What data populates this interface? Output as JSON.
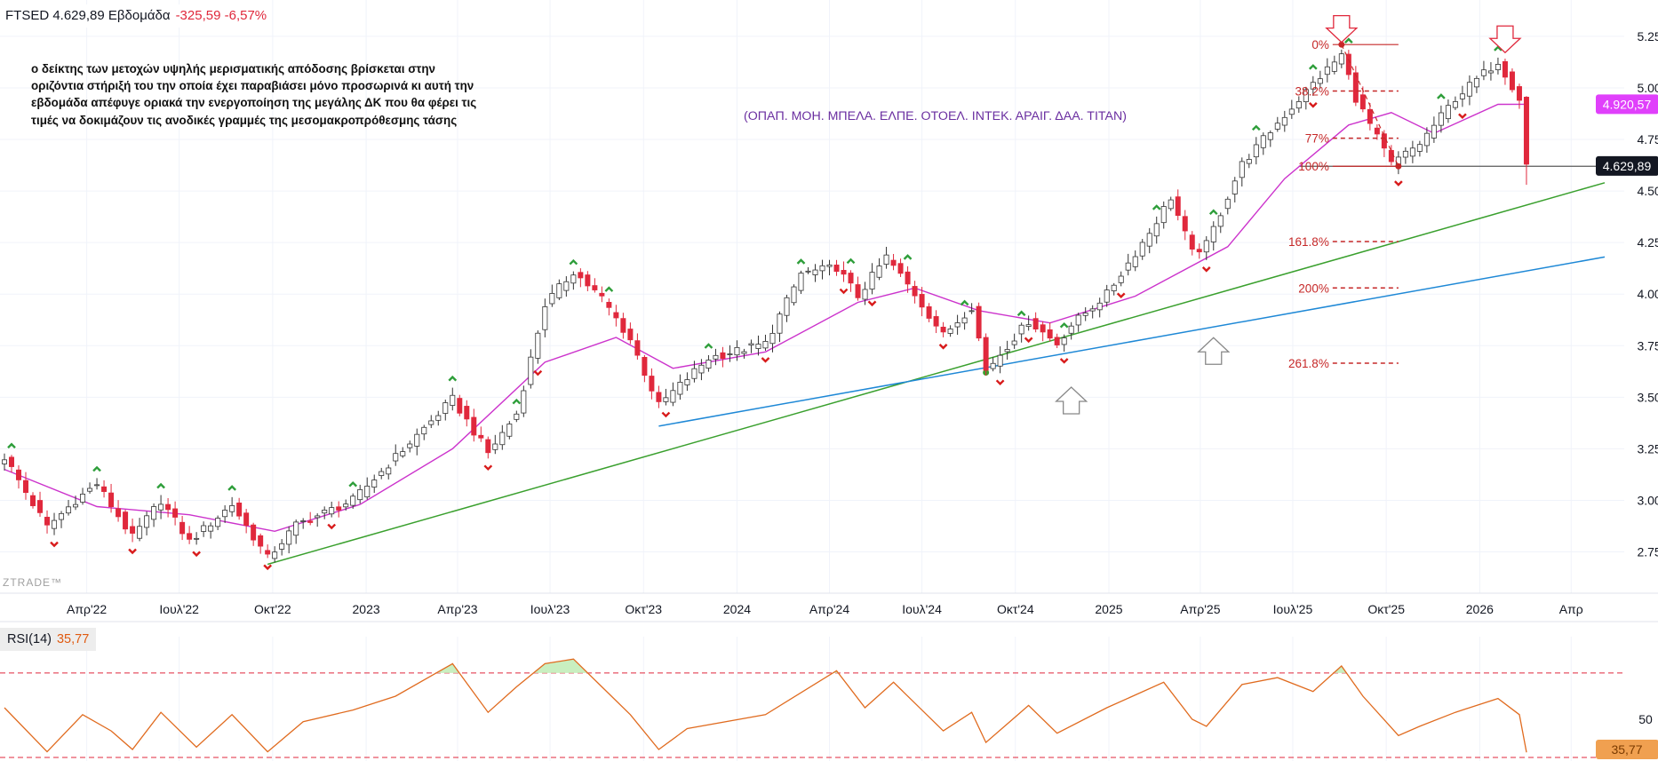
{
  "header": {
    "symbol_line": "FTSED 4.629,89 Εβδομάδα",
    "change": "-325,59 -6,57%"
  },
  "annotations": {
    "note_lines": [
      "ο δείκτης των μετοχών υψηλής μερισματικής απόδοσης βρίσκεται στην",
      "οριζόντια στήριξή του την οποία έχει παραβιάσει μόνο προσωρινά κι αυτή την",
      "εβδομάδα απέφυγε οριακά την ενεργοποίηση της μεγάλης ΔΚ που θα φέρει τις",
      "τιμές να δοκιμάζουν τις ανοδικές γραμμές της μεσομακροπρόθεσμης τάσης"
    ],
    "stocks": "(ΟΠΑΠ. ΜΟΗ. ΜΠΕΛΑ. ΕΛΠΕ.  ΟΤΟΕΛ. ΙΝΤΕΚ. ΑΡΑΙΓ. ΔΑΑ. ΤΙΤΑΝ)",
    "watermark": "ZTRADE™"
  },
  "rsi_panel": {
    "label": "RSI(14)",
    "value": "35,77"
  },
  "colors": {
    "up": "#ffffff",
    "down": "#e0283c",
    "ma": "#cc33cc",
    "green_trend": "#3aa02e",
    "blue_trend": "#1e88d6",
    "fib": "#c62828",
    "rsi": "#e06b1f",
    "rsi_fill": "#c9efc0",
    "hi_marker": "#2e9e3a",
    "lo_marker": "#d81b1b",
    "badge_ma": "#e040fb",
    "badge_price": "#131722",
    "badge_rsi": "#f0a050"
  },
  "chart_data": [
    {
      "type": "candlestick",
      "title": "FTSED",
      "interval": "Εβδομάδα",
      "ylim": [
        2550,
        5340
      ],
      "y_ticks": [
        2750,
        3000,
        3250,
        3500,
        3750,
        4000,
        4250,
        4500,
        4750,
        5000,
        5250
      ],
      "y_tick_labels": [
        "2.750",
        "3.000",
        "3.250",
        "3.500",
        "3.750",
        "4.000",
        "4.250",
        "4.500",
        "4.750",
        "5.000",
        "5.250"
      ],
      "x_range": [
        "2022-01-10",
        "2026-04-27"
      ],
      "x_ticks": [
        "2022-04-01",
        "2022-07-01",
        "2022-10-01",
        "2023-01-01",
        "2023-04-01",
        "2023-07-01",
        "2023-10-01",
        "2024-01-01",
        "2024-04-01",
        "2024-07-01",
        "2024-10-01",
        "2025-01-01",
        "2025-04-01",
        "2025-07-01",
        "2025-10-01",
        "2026-01-01",
        "2026-04-01"
      ],
      "x_tick_labels": [
        "Απρ'22",
        "Ιουλ'22",
        "Οκτ'22",
        "2023",
        "Απρ'23",
        "Ιουλ'23",
        "Οκτ'23",
        "2024",
        "Απρ'24",
        "Ιουλ'24",
        "Οκτ'24",
        "2025",
        "Απρ'25",
        "Ιουλ'25",
        "Οκτ'25",
        "2026",
        "Απρ"
      ],
      "candle_anchors": [
        {
          "date": "2022-01-10",
          "close": 3210
        },
        {
          "date": "2022-02-21",
          "close": 2870
        },
        {
          "date": "2022-03-21",
          "close": 3000
        },
        {
          "date": "2022-04-11",
          "close": 3080
        },
        {
          "date": "2022-05-16",
          "close": 2820
        },
        {
          "date": "2022-06-13",
          "close": 3000
        },
        {
          "date": "2022-07-11",
          "close": 2800
        },
        {
          "date": "2022-08-22",
          "close": 2980
        },
        {
          "date": "2022-09-26",
          "close": 2720
        },
        {
          "date": "2022-10-24",
          "close": 2880
        },
        {
          "date": "2022-12-19",
          "close": 3000
        },
        {
          "date": "2023-02-27",
          "close": 3350
        },
        {
          "date": "2023-03-27",
          "close": 3490
        },
        {
          "date": "2023-05-01",
          "close": 3230
        },
        {
          "date": "2023-05-29",
          "close": 3420
        },
        {
          "date": "2023-06-26",
          "close": 3950
        },
        {
          "date": "2023-07-24",
          "close": 4110
        },
        {
          "date": "2023-08-21",
          "close": 3980
        },
        {
          "date": "2023-09-18",
          "close": 3780
        },
        {
          "date": "2023-10-16",
          "close": 3460
        },
        {
          "date": "2023-12-04",
          "close": 3690
        },
        {
          "date": "2024-01-29",
          "close": 3760
        },
        {
          "date": "2024-03-04",
          "close": 4100
        },
        {
          "date": "2024-04-08",
          "close": 4130
        },
        {
          "date": "2024-04-29",
          "close": 3990
        },
        {
          "date": "2024-05-27",
          "close": 4180
        },
        {
          "date": "2024-06-24",
          "close": 4000
        },
        {
          "date": "2024-07-22",
          "close": 3800
        },
        {
          "date": "2024-08-19",
          "close": 3940
        },
        {
          "date": "2024-09-02",
          "close": 3630
        },
        {
          "date": "2024-10-14",
          "close": 3870
        },
        {
          "date": "2024-11-11",
          "close": 3760
        },
        {
          "date": "2024-11-25",
          "close": 3850
        },
        {
          "date": "2024-12-30",
          "close": 4000
        },
        {
          "date": "2025-02-10",
          "close": 4300
        },
        {
          "date": "2025-03-03",
          "close": 4470
        },
        {
          "date": "2025-03-24",
          "close": 4200
        },
        {
          "date": "2025-04-07",
          "close": 4240
        },
        {
          "date": "2025-05-12",
          "close": 4630
        },
        {
          "date": "2025-06-16",
          "close": 4830
        },
        {
          "date": "2025-07-21",
          "close": 5020
        },
        {
          "date": "2025-08-18",
          "close": 5160
        },
        {
          "date": "2025-09-01",
          "close": 4950
        },
        {
          "date": "2025-10-06",
          "close": 4630
        },
        {
          "date": "2025-11-03",
          "close": 4730
        },
        {
          "date": "2025-12-08",
          "close": 4950
        },
        {
          "date": "2026-01-19",
          "close": 5130
        },
        {
          "date": "2026-02-09",
          "close": 4950
        },
        {
          "date": "2026-02-16",
          "close": 4629.89
        }
      ],
      "last_candle": {
        "date": "2026-02-16",
        "open": 4955,
        "high": 4960,
        "low": 4530,
        "close": 4629.89
      },
      "price_label": "4.629,89",
      "moving_average": {
        "label": "4.920,57",
        "points": [
          {
            "date": "2022-01-10",
            "value": 3150
          },
          {
            "date": "2022-04-11",
            "value": 2970
          },
          {
            "date": "2022-07-11",
            "value": 2930
          },
          {
            "date": "2022-10-03",
            "value": 2850
          },
          {
            "date": "2022-12-26",
            "value": 2980
          },
          {
            "date": "2023-03-27",
            "value": 3250
          },
          {
            "date": "2023-06-26",
            "value": 3670
          },
          {
            "date": "2023-09-04",
            "value": 3790
          },
          {
            "date": "2023-10-30",
            "value": 3640
          },
          {
            "date": "2024-01-29",
            "value": 3720
          },
          {
            "date": "2024-04-29",
            "value": 3960
          },
          {
            "date": "2024-06-24",
            "value": 4030
          },
          {
            "date": "2024-08-26",
            "value": 3920
          },
          {
            "date": "2024-11-04",
            "value": 3860
          },
          {
            "date": "2025-01-27",
            "value": 3990
          },
          {
            "date": "2025-04-28",
            "value": 4230
          },
          {
            "date": "2025-06-23",
            "value": 4560
          },
          {
            "date": "2025-08-25",
            "value": 4820
          },
          {
            "date": "2025-10-06",
            "value": 4880
          },
          {
            "date": "2025-11-17",
            "value": 4780
          },
          {
            "date": "2026-01-19",
            "value": 4920
          },
          {
            "date": "2026-02-16",
            "value": 4920.57
          }
        ]
      },
      "trendlines": [
        {
          "color": "green",
          "from": {
            "date": "2022-09-26",
            "value": 2690
          },
          "to": {
            "date": "2026-05-04",
            "value": 4540
          }
        },
        {
          "color": "blue",
          "from": {
            "date": "2023-10-16",
            "value": 3360
          },
          "to": {
            "date": "2026-05-04",
            "value": 4180
          }
        }
      ],
      "support_line": {
        "from": "2025-07-07",
        "to": "2026-05-04",
        "value": 4620
      },
      "fibonacci": {
        "from": {
          "date": "2025-08-18",
          "value": 5210
        },
        "to": {
          "date": "2025-10-13",
          "value": 4620
        },
        "levels": [
          {
            "label": "0%",
            "value": 5210
          },
          {
            "label": "38.2%",
            "value": 4985
          },
          {
            "label": "77%",
            "value": 4756
          },
          {
            "label": "100%",
            "value": 4620
          },
          {
            "label": "161.8%",
            "value": 4255
          },
          {
            "label": "200%",
            "value": 4030
          },
          {
            "label": "261.8%",
            "value": 3665
          }
        ]
      },
      "arrows": [
        {
          "direction": "down",
          "date": "2025-08-18",
          "value": 5290
        },
        {
          "direction": "down",
          "date": "2026-01-26",
          "value": 5240
        },
        {
          "direction": "up",
          "date": "2025-04-14",
          "value": 3720
        },
        {
          "direction": "up",
          "date": "2024-11-25",
          "value": 3480
        }
      ],
      "fractal_highs": [
        "2022-01-17",
        "2022-04-11",
        "2022-06-13",
        "2022-08-22",
        "2022-12-19",
        "2023-03-27",
        "2023-05-29",
        "2023-07-24",
        "2023-08-28",
        "2023-12-04",
        "2024-03-04",
        "2024-04-22",
        "2024-06-17",
        "2024-08-12",
        "2024-10-07",
        "2024-11-18",
        "2025-02-17",
        "2025-04-14",
        "2025-05-26",
        "2025-07-21",
        "2025-08-25",
        "2025-11-24",
        "2026-01-19"
      ],
      "fractal_lows": [
        "2022-02-28",
        "2022-05-16",
        "2022-07-18",
        "2022-09-26",
        "2022-11-28",
        "2023-05-01",
        "2023-06-19",
        "2023-10-23",
        "2024-01-29",
        "2024-04-15",
        "2024-05-13",
        "2024-07-22",
        "2024-09-16",
        "2024-10-14",
        "2024-11-18",
        "2025-01-13",
        "2025-04-07",
        "2025-07-21",
        "2025-10-13",
        "2025-12-15"
      ]
    },
    {
      "type": "line",
      "title": "RSI(14)",
      "ylim": [
        32,
        78
      ],
      "y_ticks": [
        50
      ],
      "y_tick_labels": [
        "50"
      ],
      "bands": [
        30,
        70
      ],
      "last_value": 35.77,
      "points": [
        {
          "date": "2022-01-10",
          "value": 55
        },
        {
          "date": "2022-02-21",
          "value": 36
        },
        {
          "date": "2022-03-28",
          "value": 52
        },
        {
          "date": "2022-04-25",
          "value": 45
        },
        {
          "date": "2022-05-16",
          "value": 37
        },
        {
          "date": "2022-06-13",
          "value": 53
        },
        {
          "date": "2022-07-18",
          "value": 38
        },
        {
          "date": "2022-08-22",
          "value": 52
        },
        {
          "date": "2022-09-26",
          "value": 36
        },
        {
          "date": "2022-10-31",
          "value": 49
        },
        {
          "date": "2022-12-19",
          "value": 54
        },
        {
          "date": "2023-01-30",
          "value": 60
        },
        {
          "date": "2023-03-27",
          "value": 74
        },
        {
          "date": "2023-05-01",
          "value": 53
        },
        {
          "date": "2023-05-29",
          "value": 64
        },
        {
          "date": "2023-06-26",
          "value": 74
        },
        {
          "date": "2023-07-24",
          "value": 76
        },
        {
          "date": "2023-08-21",
          "value": 64
        },
        {
          "date": "2023-09-18",
          "value": 52
        },
        {
          "date": "2023-10-16",
          "value": 37
        },
        {
          "date": "2023-11-13",
          "value": 46
        },
        {
          "date": "2024-01-29",
          "value": 52
        },
        {
          "date": "2024-04-08",
          "value": 71
        },
        {
          "date": "2024-05-06",
          "value": 55
        },
        {
          "date": "2024-06-03",
          "value": 66
        },
        {
          "date": "2024-07-22",
          "value": 45
        },
        {
          "date": "2024-08-19",
          "value": 53
        },
        {
          "date": "2024-09-02",
          "value": 40
        },
        {
          "date": "2024-10-14",
          "value": 56
        },
        {
          "date": "2024-11-11",
          "value": 44
        },
        {
          "date": "2024-12-30",
          "value": 55
        },
        {
          "date": "2025-02-24",
          "value": 66
        },
        {
          "date": "2025-03-24",
          "value": 50
        },
        {
          "date": "2025-04-07",
          "value": 47
        },
        {
          "date": "2025-05-12",
          "value": 65
        },
        {
          "date": "2025-06-16",
          "value": 68
        },
        {
          "date": "2025-07-21",
          "value": 62
        },
        {
          "date": "2025-08-18",
          "value": 73
        },
        {
          "date": "2025-09-08",
          "value": 60
        },
        {
          "date": "2025-10-13",
          "value": 43
        },
        {
          "date": "2025-11-03",
          "value": 47
        },
        {
          "date": "2025-12-08",
          "value": 53
        },
        {
          "date": "2026-01-19",
          "value": 59
        },
        {
          "date": "2026-02-09",
          "value": 52
        },
        {
          "date": "2026-02-16",
          "value": 35.77
        }
      ]
    }
  ]
}
